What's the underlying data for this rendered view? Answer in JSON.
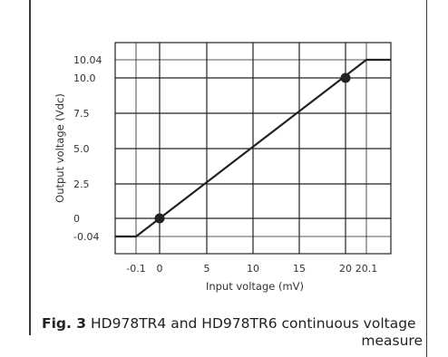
{
  "figure": {
    "label": "Fig. 3",
    "caption_line1": "HD978TR4 and HD978TR6 continuous voltage",
    "caption_line2": "measure"
  },
  "chart_data": {
    "type": "line",
    "title": "",
    "xlabel": "Input voltage (mV)",
    "ylabel": "Output voltage (Vdc)",
    "x_ticks": [
      {
        "value": -0.1,
        "label": "-0.1"
      },
      {
        "value": 0,
        "label": "0"
      },
      {
        "value": 5,
        "label": "5"
      },
      {
        "value": 10,
        "label": "10"
      },
      {
        "value": 15,
        "label": "15"
      },
      {
        "value": 20,
        "label": "20"
      },
      {
        "value": 20.1,
        "label": "20.1"
      }
    ],
    "y_ticks": [
      {
        "value": -0.04,
        "label": "-0.04"
      },
      {
        "value": 0,
        "label": "0"
      },
      {
        "value": 2.5,
        "label": "2.5"
      },
      {
        "value": 5.0,
        "label": "5.0"
      },
      {
        "value": 7.5,
        "label": "7.5"
      },
      {
        "value": 10.0,
        "label": "10.0"
      },
      {
        "value": 10.04,
        "label": "10.04"
      }
    ],
    "series": [
      {
        "points": [
          {
            "x": -1.4,
            "y": -0.04
          },
          {
            "x": -0.1,
            "y": -0.04
          },
          {
            "x": 20.1,
            "y": 10.04
          },
          {
            "x": 21.4,
            "y": 10.04
          }
        ]
      }
    ],
    "markers": [
      {
        "x": 0,
        "y": 0
      },
      {
        "x": 20,
        "y": 10.0
      }
    ],
    "grid": true,
    "colors": {
      "line": "#222222",
      "grid": "#222222",
      "text": "#333333"
    }
  }
}
